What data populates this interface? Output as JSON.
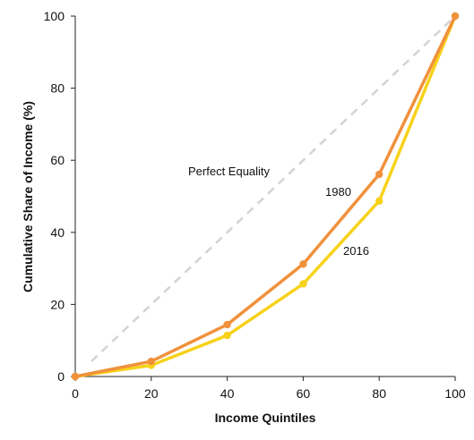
{
  "chart_data": {
    "type": "line",
    "xlabel": "Income Quintiles",
    "ylabel": "Cumulative Share of Income (%)",
    "xlim": [
      0,
      100
    ],
    "ylim": [
      0,
      100
    ],
    "x_ticks": [
      "0",
      "20",
      "40",
      "60",
      "80",
      "100"
    ],
    "y_ticks": [
      "0",
      "20",
      "40",
      "60",
      "80",
      "100"
    ],
    "grid": false,
    "x": [
      0,
      20,
      40,
      60,
      80,
      100
    ],
    "series": [
      {
        "name": "1980",
        "values": [
          0,
          4.2,
          14.4,
          31.2,
          56.1,
          100
        ],
        "color": "#f0913c"
      },
      {
        "name": "2016",
        "values": [
          0,
          3.1,
          11.4,
          25.7,
          48.7,
          100
        ],
        "color": "#f7d21a"
      }
    ],
    "reference_line": {
      "label": "Perfect Equality",
      "from": [
        0,
        0
      ],
      "to": [
        100,
        100
      ],
      "color": "#d3d3d3",
      "style": "dashed"
    }
  }
}
